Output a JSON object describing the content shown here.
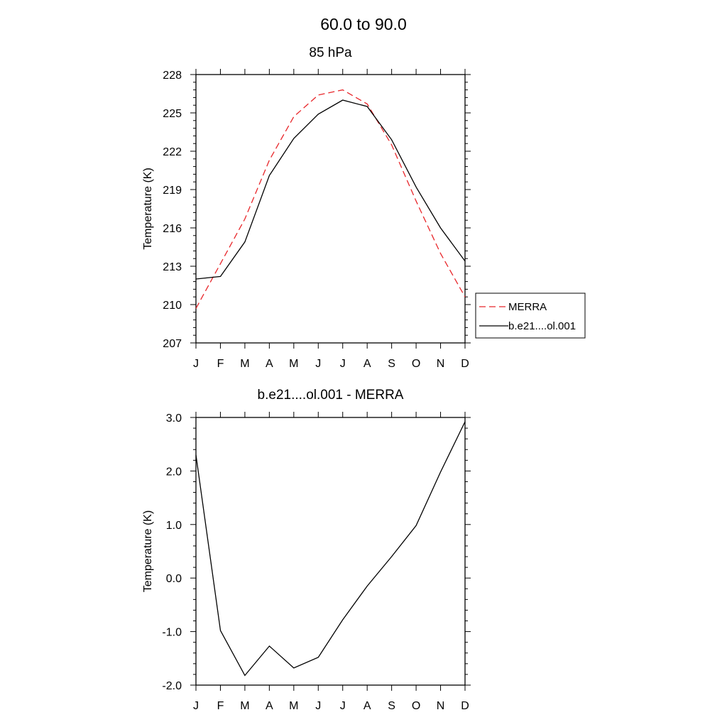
{
  "figure": {
    "title": "60.0 to  90.0"
  },
  "chart_data": [
    {
      "type": "line",
      "title": "85 hPa",
      "xlabel": "",
      "ylabel": "Temperature (K)",
      "categories": [
        "J",
        "F",
        "M",
        "A",
        "M",
        "J",
        "J",
        "A",
        "S",
        "O",
        "N",
        "D"
      ],
      "ylim": [
        207,
        228
      ],
      "yticks": [
        "207",
        "210",
        "213",
        "216",
        "219",
        "222",
        "225",
        "228"
      ],
      "grid": false,
      "legend": "right",
      "series": [
        {
          "name": "MERRA",
          "style": "dashed",
          "color": "#e8262a",
          "values": [
            209.7,
            213.2,
            216.7,
            221.3,
            224.7,
            226.4,
            226.8,
            225.7,
            222.5,
            218.1,
            214.0,
            210.6
          ]
        },
        {
          "name": "b.e21....ol.001",
          "style": "solid",
          "color": "#000000",
          "values": [
            212.0,
            212.2,
            214.9,
            220.1,
            223.0,
            224.9,
            226.0,
            225.5,
            222.9,
            219.2,
            216.0,
            213.4
          ]
        }
      ]
    },
    {
      "type": "line",
      "title": "b.e21....ol.001 - MERRA",
      "xlabel": "",
      "ylabel": "Temperature (K)",
      "categories": [
        "J",
        "F",
        "M",
        "A",
        "M",
        "J",
        "J",
        "A",
        "S",
        "O",
        "N",
        "D"
      ],
      "ylim": [
        -2.0,
        3.0
      ],
      "yticks": [
        "-2.0",
        "-1.0",
        "0.0",
        "1.0",
        "2.0",
        "3.0"
      ],
      "grid": false,
      "series": [
        {
          "style": "solid",
          "color": "#000000",
          "values": [
            2.3,
            -0.98,
            -1.82,
            -1.27,
            -1.68,
            -1.48,
            -0.78,
            -0.15,
            0.4,
            0.98,
            1.98,
            2.92
          ]
        }
      ]
    }
  ]
}
